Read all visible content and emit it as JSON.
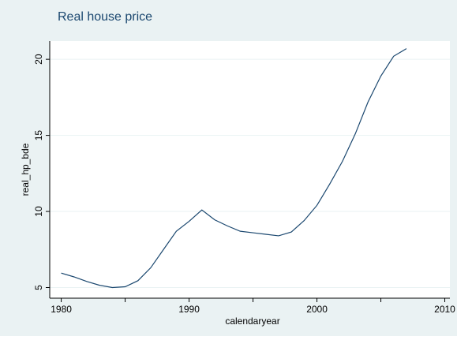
{
  "chart_data": {
    "type": "line",
    "title": "Real house price",
    "xlabel": "calendaryear",
    "ylabel": "real_hp_bde",
    "x": [
      1980,
      1981,
      1982,
      1983,
      1984,
      1985,
      1986,
      1987,
      1988,
      1989,
      1990,
      1991,
      1992,
      1993,
      1994,
      1995,
      1996,
      1997,
      1998,
      1999,
      2000,
      2001,
      2002,
      2003,
      2004,
      2005,
      2006,
      2007
    ],
    "series": [
      {
        "name": "real_hp_bde",
        "color": "#1a476f",
        "values": [
          5.95,
          5.7,
          5.4,
          5.15,
          5.0,
          5.05,
          5.45,
          6.3,
          7.5,
          8.7,
          9.35,
          10.1,
          9.45,
          9.05,
          8.7,
          8.6,
          8.5,
          8.4,
          8.65,
          9.4,
          10.4,
          11.8,
          13.3,
          15.1,
          17.2,
          18.9,
          20.2,
          20.7
        ]
      }
    ],
    "xlim": [
      1979.1,
      2010.4
    ],
    "xticks": [
      1980,
      1990,
      2000,
      2010
    ],
    "xminorticks": [
      1985,
      1995,
      2005
    ],
    "ylim": [
      4.3,
      21.2
    ],
    "yticks": [
      5,
      10,
      15,
      20
    ],
    "grid": true
  }
}
